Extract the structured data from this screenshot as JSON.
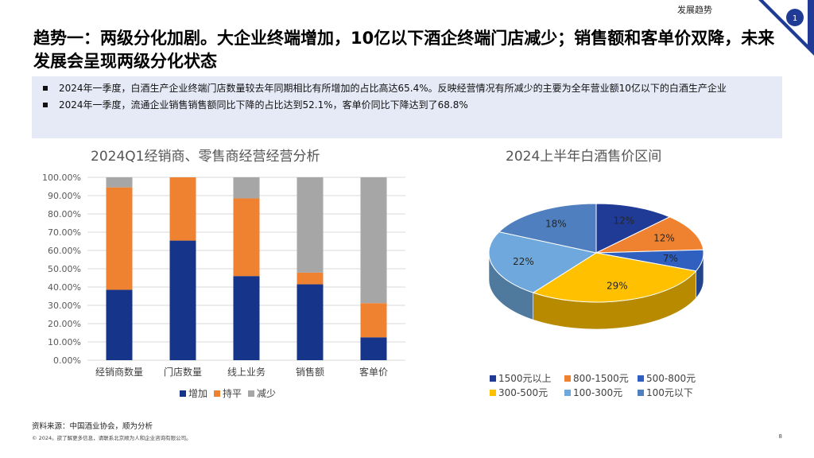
{
  "header": {
    "section_label": "发展趋势",
    "page_badge": "1"
  },
  "title": "趋势一：两级分化加剧。大企业终端增加，10亿以下酒企终端门店减少；销售额和客单价双降，未来发展会呈现两级分化状态",
  "bullets": [
    "2024年一季度，白酒生产企业终端门店数量较去年同期相比有所增加的占比高达65.4%。反映经营情况有所减少的主要为全年营业额10亿以下的白酒生产企业",
    "2024年一季度，流通企业销售销售额同比下降的占比达到52.1%，客单价同比下降达到了68.8%"
  ],
  "chart_data": [
    {
      "type": "bar",
      "stacked": true,
      "title": "2024Q1经销商、零售商经营经营分析",
      "categories": [
        "经销商数量",
        "门店数量",
        "线上业务",
        "销售额",
        "客单价"
      ],
      "series": [
        {
          "name": "增加",
          "color": "#16348a",
          "values": [
            38.5,
            65.4,
            46.0,
            41.5,
            12.5
          ]
        },
        {
          "name": "持平",
          "color": "#ef8230",
          "values": [
            56.0,
            34.6,
            42.5,
            6.4,
            18.7
          ]
        },
        {
          "name": "减少",
          "color": "#a6a6a6",
          "values": [
            5.5,
            0.0,
            11.5,
            52.1,
            68.8
          ]
        }
      ],
      "y_ticks": [
        "0.00%",
        "10.00%",
        "20.00%",
        "30.00%",
        "40.00%",
        "50.00%",
        "60.00%",
        "70.00%",
        "80.00%",
        "90.00%",
        "100.00%"
      ],
      "ylim": [
        0,
        100
      ],
      "grid": true,
      "legend_position": "bottom"
    },
    {
      "type": "pie",
      "title": "2024上半年白酒售价区间",
      "slices": [
        {
          "label": "1500元以上",
          "value": 12,
          "text": "12%",
          "color": "#1f3b96"
        },
        {
          "label": "800-1500元",
          "value": 12,
          "text": "12%",
          "color": "#ef8230"
        },
        {
          "label": "500-800元",
          "value": 7,
          "text": "7%",
          "color": "#2f5fbf"
        },
        {
          "label": "300-500元",
          "value": 29,
          "text": "29%",
          "color": "#ffc000"
        },
        {
          "label": "100-300元",
          "value": 22,
          "text": "22%",
          "color": "#6fa8dc"
        },
        {
          "label": "100元以下",
          "value": 18,
          "text": "18%",
          "color": "#4f7fbf"
        }
      ],
      "legend_position": "bottom"
    }
  ],
  "footer": {
    "source": "资料来源：中国酒业协会，顺为分析",
    "copyright": "© 2024。欲了解更多信息，请联系北京顺为人和企业咨询有限公司。",
    "page_number": "8"
  }
}
